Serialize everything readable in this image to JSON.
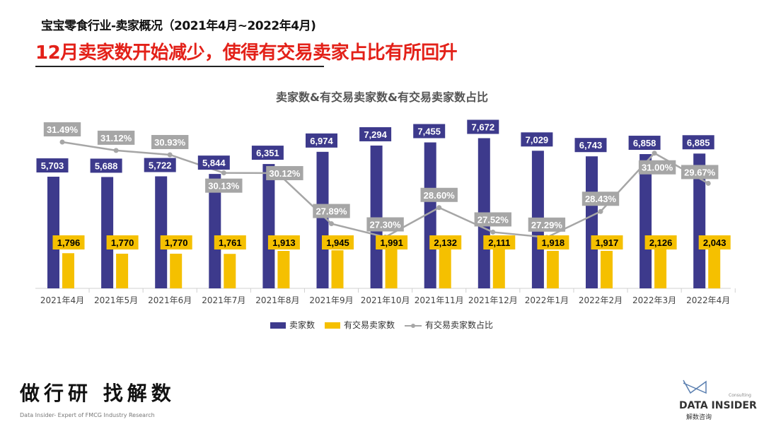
{
  "header": {
    "subtitle": "宝宝零食行业-卖家概况（2021年4月~2022年4月)",
    "headline": "12月卖家数开始减少，使得有交易卖家占比有所回升"
  },
  "chart_data": {
    "type": "bar+line",
    "title": "卖家数&有交易卖家数&有交易卖家数占比",
    "categories": [
      "2021年4月",
      "2021年5月",
      "2021年6月",
      "2021年7月",
      "2021年8月",
      "2021年9月",
      "2021年10月",
      "2021年11月",
      "2021年12月",
      "2022年1月",
      "2022年2月",
      "2022年3月",
      "2022年4月"
    ],
    "series": [
      {
        "name": "卖家数",
        "type": "bar",
        "color": "#3d3a8c",
        "values": [
          5703,
          5688,
          5722,
          5844,
          6351,
          6974,
          7294,
          7455,
          7672,
          7029,
          6743,
          6858,
          6885
        ],
        "labels": [
          "5,703",
          "5,688",
          "5,722",
          "5,844",
          "6,351",
          "6,974",
          "7,294",
          "7,455",
          "7,672",
          "7,029",
          "6,743",
          "6,858",
          "6,885"
        ]
      },
      {
        "name": "有交易卖家数",
        "type": "bar",
        "color": "#f5c000",
        "values": [
          1796,
          1770,
          1770,
          1761,
          1913,
          1945,
          1991,
          2132,
          2111,
          1918,
          1917,
          2126,
          2043
        ],
        "labels": [
          "1,796",
          "1,770",
          "1,770",
          "1,761",
          "1,913",
          "1,945",
          "1,991",
          "2,132",
          "2,111",
          "1,918",
          "1,917",
          "2,126",
          "2,043"
        ]
      },
      {
        "name": "有交易卖家数占比",
        "type": "line",
        "axis": "secondary",
        "color": "#a6a6a6",
        "values": [
          31.49,
          31.12,
          30.93,
          30.13,
          30.12,
          27.89,
          27.3,
          28.6,
          27.52,
          27.29,
          28.43,
          31.0,
          29.67
        ],
        "labels": [
          "31.49%",
          "31.12%",
          "30.93%",
          "30.13%",
          "30.12%",
          "27.89%",
          "27.30%",
          "28.60%",
          "27.52%",
          "27.29%",
          "28.43%",
          "31.00%",
          "29.67%"
        ]
      }
    ],
    "grid": false,
    "legend": "bottom"
  },
  "footer": {
    "slogan": "做行研 找解数",
    "slogan_en": "Data Insider- Expert of FMCG Industry Research",
    "brand": "DATA INSIDER",
    "brand_cn": "解数咨询",
    "brand_sub": "Consulting"
  }
}
